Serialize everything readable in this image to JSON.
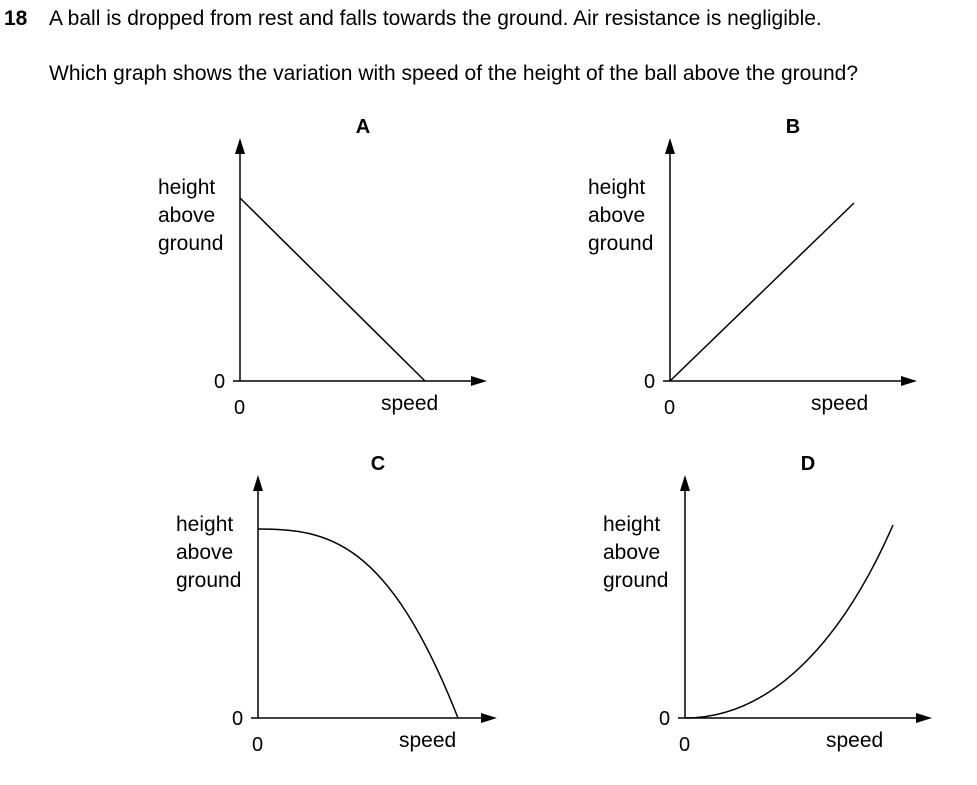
{
  "question": {
    "number": "18",
    "line1": "A ball is dropped from rest and falls towards the ground. Air resistance is negligible.",
    "line2": "Which graph shows the variation with speed of the height of the ball above the ground?"
  },
  "graphs": [
    {
      "letter": "A",
      "ylabel_lines": [
        "height",
        "above",
        "ground"
      ],
      "y_zero": "0",
      "x_zero": "0",
      "xlabel": "speed"
    },
    {
      "letter": "B",
      "ylabel_lines": [
        "height",
        "above",
        "ground"
      ],
      "y_zero": "0",
      "x_zero": "0",
      "xlabel": "speed"
    },
    {
      "letter": "C",
      "ylabel_lines": [
        "height",
        "above",
        "ground"
      ],
      "y_zero": "0",
      "x_zero": "0",
      "xlabel": "speed"
    },
    {
      "letter": "D",
      "ylabel_lines": [
        "height",
        "above",
        "ground"
      ],
      "y_zero": "0",
      "x_zero": "0",
      "xlabel": "speed"
    }
  ]
}
